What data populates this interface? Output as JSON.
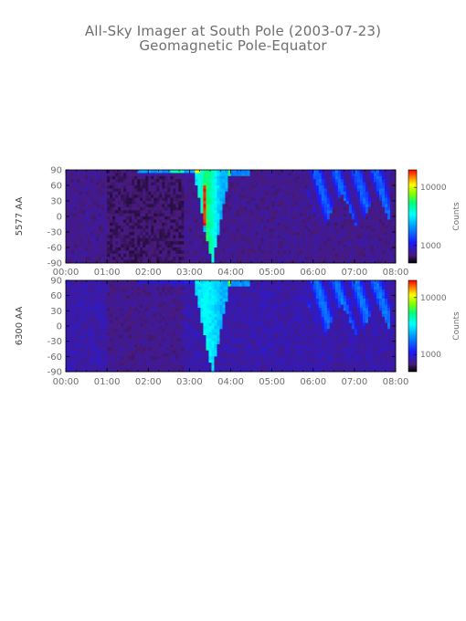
{
  "title": "All-Sky Imager at South Pole (2003-07-23)",
  "subtitle": "Geomagnetic Pole-Equator",
  "chart_data": [
    {
      "type": "heatmap",
      "ylabel": "5577 AA",
      "xlabel": "",
      "x_ticks": [
        "00:00",
        "01:00",
        "02:00",
        "03:00",
        "04:00",
        "05:00",
        "06:00",
        "07:00",
        "08:00"
      ],
      "xlim_hours": [
        0,
        8
      ],
      "y_ticks": [
        "90",
        "60",
        "30",
        "0",
        "-30",
        "-60",
        "-90"
      ],
      "ylim": [
        -90,
        90
      ],
      "colorbar_label": "Counts",
      "colorbar_scale": "log",
      "colorbar_ticks": [
        "10000",
        "1000"
      ],
      "colorbar_tick_values": [
        10000,
        1000
      ],
      "colorbar_range": [
        500,
        20000
      ]
    },
    {
      "type": "heatmap",
      "ylabel": "6300 AA",
      "xlabel": "",
      "x_ticks": [
        "00:00",
        "01:00",
        "02:00",
        "03:00",
        "04:00",
        "05:00",
        "06:00",
        "07:00",
        "08:00"
      ],
      "xlim_hours": [
        0,
        8
      ],
      "y_ticks": [
        "90",
        "60",
        "30",
        "0",
        "-30",
        "-60",
        "-90"
      ],
      "ylim": [
        -90,
        90
      ],
      "colorbar_label": "Counts",
      "colorbar_scale": "log",
      "colorbar_ticks": [
        "10000",
        "1000"
      ],
      "colorbar_tick_values": [
        10000,
        1000
      ],
      "colorbar_range": [
        500,
        20000
      ]
    }
  ]
}
